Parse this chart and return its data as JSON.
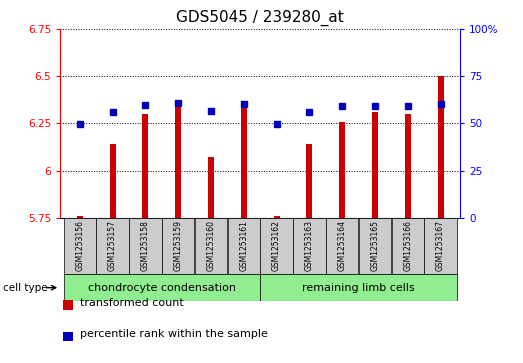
{
  "title": "GDS5045 / 239280_at",
  "samples": [
    "GSM1253156",
    "GSM1253157",
    "GSM1253158",
    "GSM1253159",
    "GSM1253160",
    "GSM1253161",
    "GSM1253162",
    "GSM1253163",
    "GSM1253164",
    "GSM1253165",
    "GSM1253166",
    "GSM1253167"
  ],
  "red_values": [
    5.76,
    6.14,
    6.3,
    6.37,
    6.07,
    6.36,
    5.76,
    6.14,
    6.26,
    6.31,
    6.3,
    6.5
  ],
  "blue_values": [
    6.245,
    6.31,
    6.35,
    6.36,
    6.315,
    6.355,
    6.248,
    6.31,
    6.34,
    6.34,
    6.34,
    6.355
  ],
  "ymin": 5.75,
  "ymax": 6.75,
  "yticks": [
    5.75,
    6.0,
    6.25,
    6.5,
    6.75
  ],
  "ytick_labels": [
    "5.75",
    "6",
    "6.25",
    "6.5",
    "6.75"
  ],
  "right_yticks": [
    0,
    25,
    50,
    75,
    100
  ],
  "right_ytick_labels": [
    "0",
    "25",
    "50",
    "75",
    "100%"
  ],
  "bar_color": "#cc0000",
  "blue_color": "#0000bb",
  "group1_label": "chondrocyte condensation",
  "group2_label": "remaining limb cells",
  "group1_count": 6,
  "group2_count": 6,
  "cell_type_label": "cell type",
  "legend_red": "transformed count",
  "legend_blue": "percentile rank within the sample",
  "sample_bg": "#cccccc",
  "group_bg": "#90ee90",
  "plot_bg": "#ffffff",
  "title_fontsize": 11,
  "tick_fontsize": 7.5,
  "sample_fontsize": 5.5,
  "group_fontsize": 8,
  "legend_fontsize": 8
}
